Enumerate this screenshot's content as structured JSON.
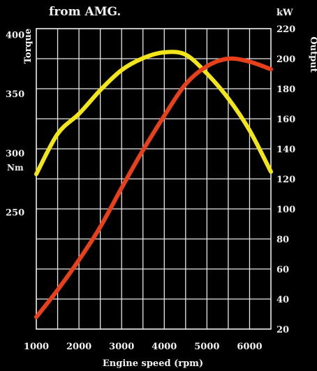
{
  "chart_data": {
    "type": "line",
    "title": "from AMG.",
    "xlabel": "Engine speed (rpm)",
    "ylabel_left": "Torque",
    "ylabel_left_unit": "Nm",
    "ylabel_right": "Output",
    "ylabel_right_unit": "kW",
    "x_ticks": [
      "1000",
      "2000",
      "3000",
      "4000",
      "5000",
      "6000"
    ],
    "y_left_ticks": [
      "250",
      "300",
      "350",
      "400"
    ],
    "y_right_ticks": [
      "20",
      "40",
      "60",
      "80",
      "100",
      "120",
      "140",
      "160",
      "180",
      "200",
      "220"
    ],
    "xlim": [
      1000,
      6500
    ],
    "y_right_lim": [
      20,
      220
    ],
    "y_left_lim": [
      151,
      405
    ],
    "grid": true,
    "series": [
      {
        "key": "torque",
        "axis": "left",
        "color": "#f2e61a",
        "x": [
          1000,
          1500,
          2000,
          2500,
          3000,
          3500,
          4000,
          4500,
          5000,
          5500,
          6000,
          6500
        ],
        "values": [
          282,
          316,
          333,
          353,
          370,
          380,
          385,
          383,
          367,
          346,
          319,
          284
        ]
      },
      {
        "key": "output",
        "axis": "right",
        "color": "#e8401a",
        "x": [
          1000,
          1500,
          2000,
          2500,
          3000,
          3500,
          4000,
          4500,
          5000,
          5500,
          6000,
          6500
        ],
        "values": [
          28,
          46,
          66,
          88,
          114,
          139,
          162,
          183,
          195,
          200,
          198,
          193
        ]
      }
    ]
  }
}
